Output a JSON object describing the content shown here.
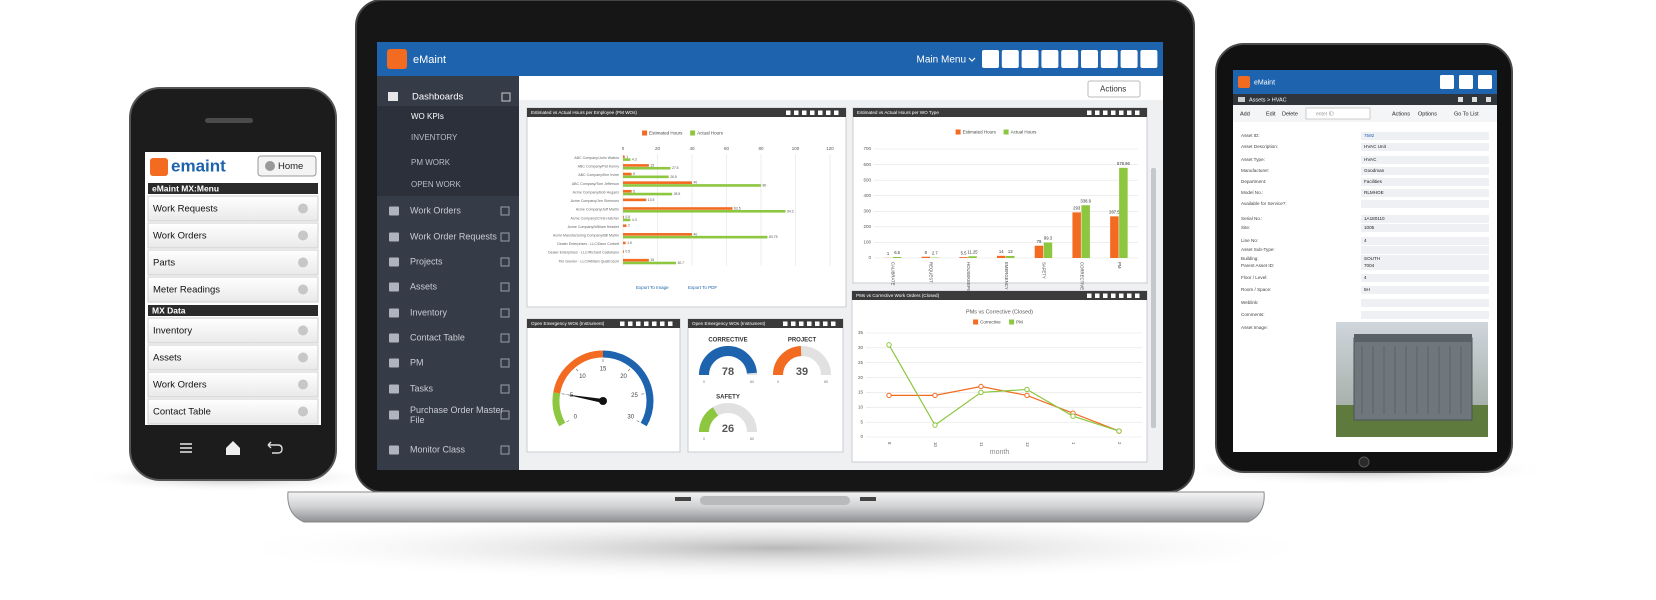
{
  "phone": {
    "logo": "emaint",
    "home_button": "Home",
    "sections": [
      {
        "title": "eMaint MX:Menu",
        "items": [
          "Work Requests",
          "Work Orders",
          "Parts",
          "Meter Readings"
        ]
      },
      {
        "title": "MX Data",
        "items": [
          "Inventory",
          "Assets",
          "Work Orders",
          "Contact Table"
        ]
      }
    ]
  },
  "laptop": {
    "brand": "eMaint",
    "main_menu": "Main Menu",
    "actions": "Actions",
    "sidebar": {
      "dashboards": "Dashboards",
      "dashboard_items": [
        "WO KPIs",
        "INVENTORY",
        "PM WORK",
        "OPEN WORK"
      ],
      "items": [
        "Work Orders",
        "Work Order Requests",
        "Projects",
        "Assets",
        "Inventory",
        "Contact Table",
        "PM",
        "Tasks",
        "Purchase Order Master File",
        "Monitor Class"
      ]
    }
  },
  "chart_data": [
    {
      "type": "hbar",
      "title": "Estimated vs Actual Hours per Employee (PM WOs)",
      "categories": [
        "ABC Company/John Waters",
        "ABC Company/Pat Kenny",
        "ABC Company/Kim Irvine",
        "ABC Company/Tom Jefferson",
        "Acme Company/Bob Hugans",
        "Acme Company/Jen Simmons",
        "Acme Company/Jeff Martin",
        "Acme Company/Chris Hatcher",
        "Acme Company/William Heaslet",
        "Acme Manufacturing Company/Bill Martin",
        "Dealer Enterprises - LLC/Dave Corbett",
        "Dealer Enterprises - LLC/Richard Castellano",
        "Tim Grenier - LLC/William Quattrocchi"
      ],
      "series": [
        {
          "name": "Estimated Hours",
          "color": "#f26b21",
          "values": [
            1,
            15,
            5,
            40,
            5,
            13.5,
            63.5,
            0.5,
            2,
            40,
            1.5,
            0.5,
            15
          ]
        },
        {
          "name": "Actual Hours",
          "color": "#8dc63f",
          "values": [
            4.3,
            27.5,
            26.5,
            80,
            28.5,
            null,
            94.2,
            4.3,
            null,
            83.75,
            null,
            null,
            30.7
          ]
        }
      ],
      "xlim": [
        0,
        120
      ],
      "xticks": [
        0,
        20,
        40,
        60,
        80,
        100,
        120
      ],
      "grid": true,
      "links": [
        "Export To Image",
        "Export To PDF"
      ]
    },
    {
      "type": "bar",
      "title": "Estimated vs Actual Hours per WO Type",
      "categories": [
        "CALIBRATE",
        "REQUEST",
        "HOUSEKEEPING",
        "EMERGENCY",
        "SAFETY",
        "CORRECTIVE",
        "PM"
      ],
      "series": [
        {
          "name": "Estimated Hours",
          "color": "#f26b21",
          "values": [
            1,
            8,
            5.5,
            14,
            79,
            293,
            267.5
          ]
        },
        {
          "name": "Actual Hours",
          "color": "#8dc63f",
          "values": [
            6.5,
            2.7,
            11.25,
            13,
            99.3,
            338.9,
            578.96
          ]
        }
      ],
      "ylim": [
        0,
        700
      ],
      "yticks": [
        0,
        100,
        200,
        300,
        400,
        500,
        600,
        700
      ],
      "grid": true
    },
    {
      "type": "gauge",
      "title": "Open Emergency WOs (Instrument)",
      "value": 5,
      "min": 0,
      "max": 30,
      "ticks": [
        0,
        5,
        10,
        15,
        20,
        25,
        30
      ],
      "bands": [
        {
          "from": 0,
          "to": 5,
          "color": "#8dc63f"
        },
        {
          "from": 5,
          "to": 15,
          "color": "#f26b21"
        },
        {
          "from": 15,
          "to": 30,
          "color": "#1e63ad"
        }
      ]
    },
    {
      "type": "gauge",
      "title": "Open Emergency WOs (Instrument)",
      "gauges": [
        {
          "label": "CORRECTIVE",
          "value": 78,
          "min": 0,
          "max": 80,
          "color": "#1e63ad"
        },
        {
          "label": "PROJECT",
          "value": 39,
          "min": 0,
          "max": 80,
          "color": "#f26b21"
        },
        {
          "label": "SAFETY",
          "value": 26,
          "min": 0,
          "max": 80,
          "color": "#8dc63f"
        }
      ]
    },
    {
      "type": "line",
      "title": "PMs vs Corrective Work Orders (Closed)",
      "subtitle": "PMs vs Corrective (Closed)",
      "x_label": "month",
      "categories": [
        "8",
        "10",
        "11",
        "12",
        "1",
        "2"
      ],
      "series": [
        {
          "name": "Corrective",
          "color": "#f26b21",
          "values": [
            14,
            14,
            17,
            14,
            8,
            2
          ]
        },
        {
          "name": "PM",
          "color": "#8dc63f",
          "values": [
            31,
            4,
            15,
            16,
            7,
            2
          ]
        }
      ],
      "ylim": [
        0,
        35
      ],
      "yticks": [
        0,
        5,
        10,
        15,
        20,
        25,
        30,
        35
      ],
      "grid": true
    }
  ],
  "tablet": {
    "brand": "eMaint",
    "breadcrumb": "Assets > HVAC",
    "toolbar": [
      "Add",
      "Edit",
      "Delete"
    ],
    "search_placeholder": "enter ID",
    "menus": [
      "Actions",
      "Options"
    ],
    "go_to_list": "Go To List",
    "fields": [
      {
        "label": "Asset ID:",
        "value": "7592"
      },
      {
        "label": "Asset Description:",
        "value": "HVAC Unit"
      },
      {
        "label": "Asset Type:",
        "value": "HVAC"
      },
      {
        "label": "Manufacturer:",
        "value": "Goodman"
      },
      {
        "label": "Department:",
        "value": "Facilities"
      },
      {
        "label": "Model No.:",
        "value": "RLMHOE"
      },
      {
        "label": "Available for Service?:"
      },
      {
        "label": "Serial No.:",
        "value": "1A180110"
      },
      {
        "label": "Site:",
        "value": "1005"
      },
      {
        "label": "Line No:",
        "value": "4"
      },
      {
        "label": "Asset Sub-Type:"
      },
      {
        "label": "Building:",
        "value": "SOUTH"
      },
      {
        "label": "Parent Asset ID:",
        "value": "7004"
      },
      {
        "label": "Floor / Level:",
        "value": "4"
      },
      {
        "label": "Room / Space:",
        "value": "5H"
      },
      {
        "label": "Weblink:"
      },
      {
        "label": "Comments:"
      },
      {
        "label": "Asset Image:"
      }
    ]
  }
}
